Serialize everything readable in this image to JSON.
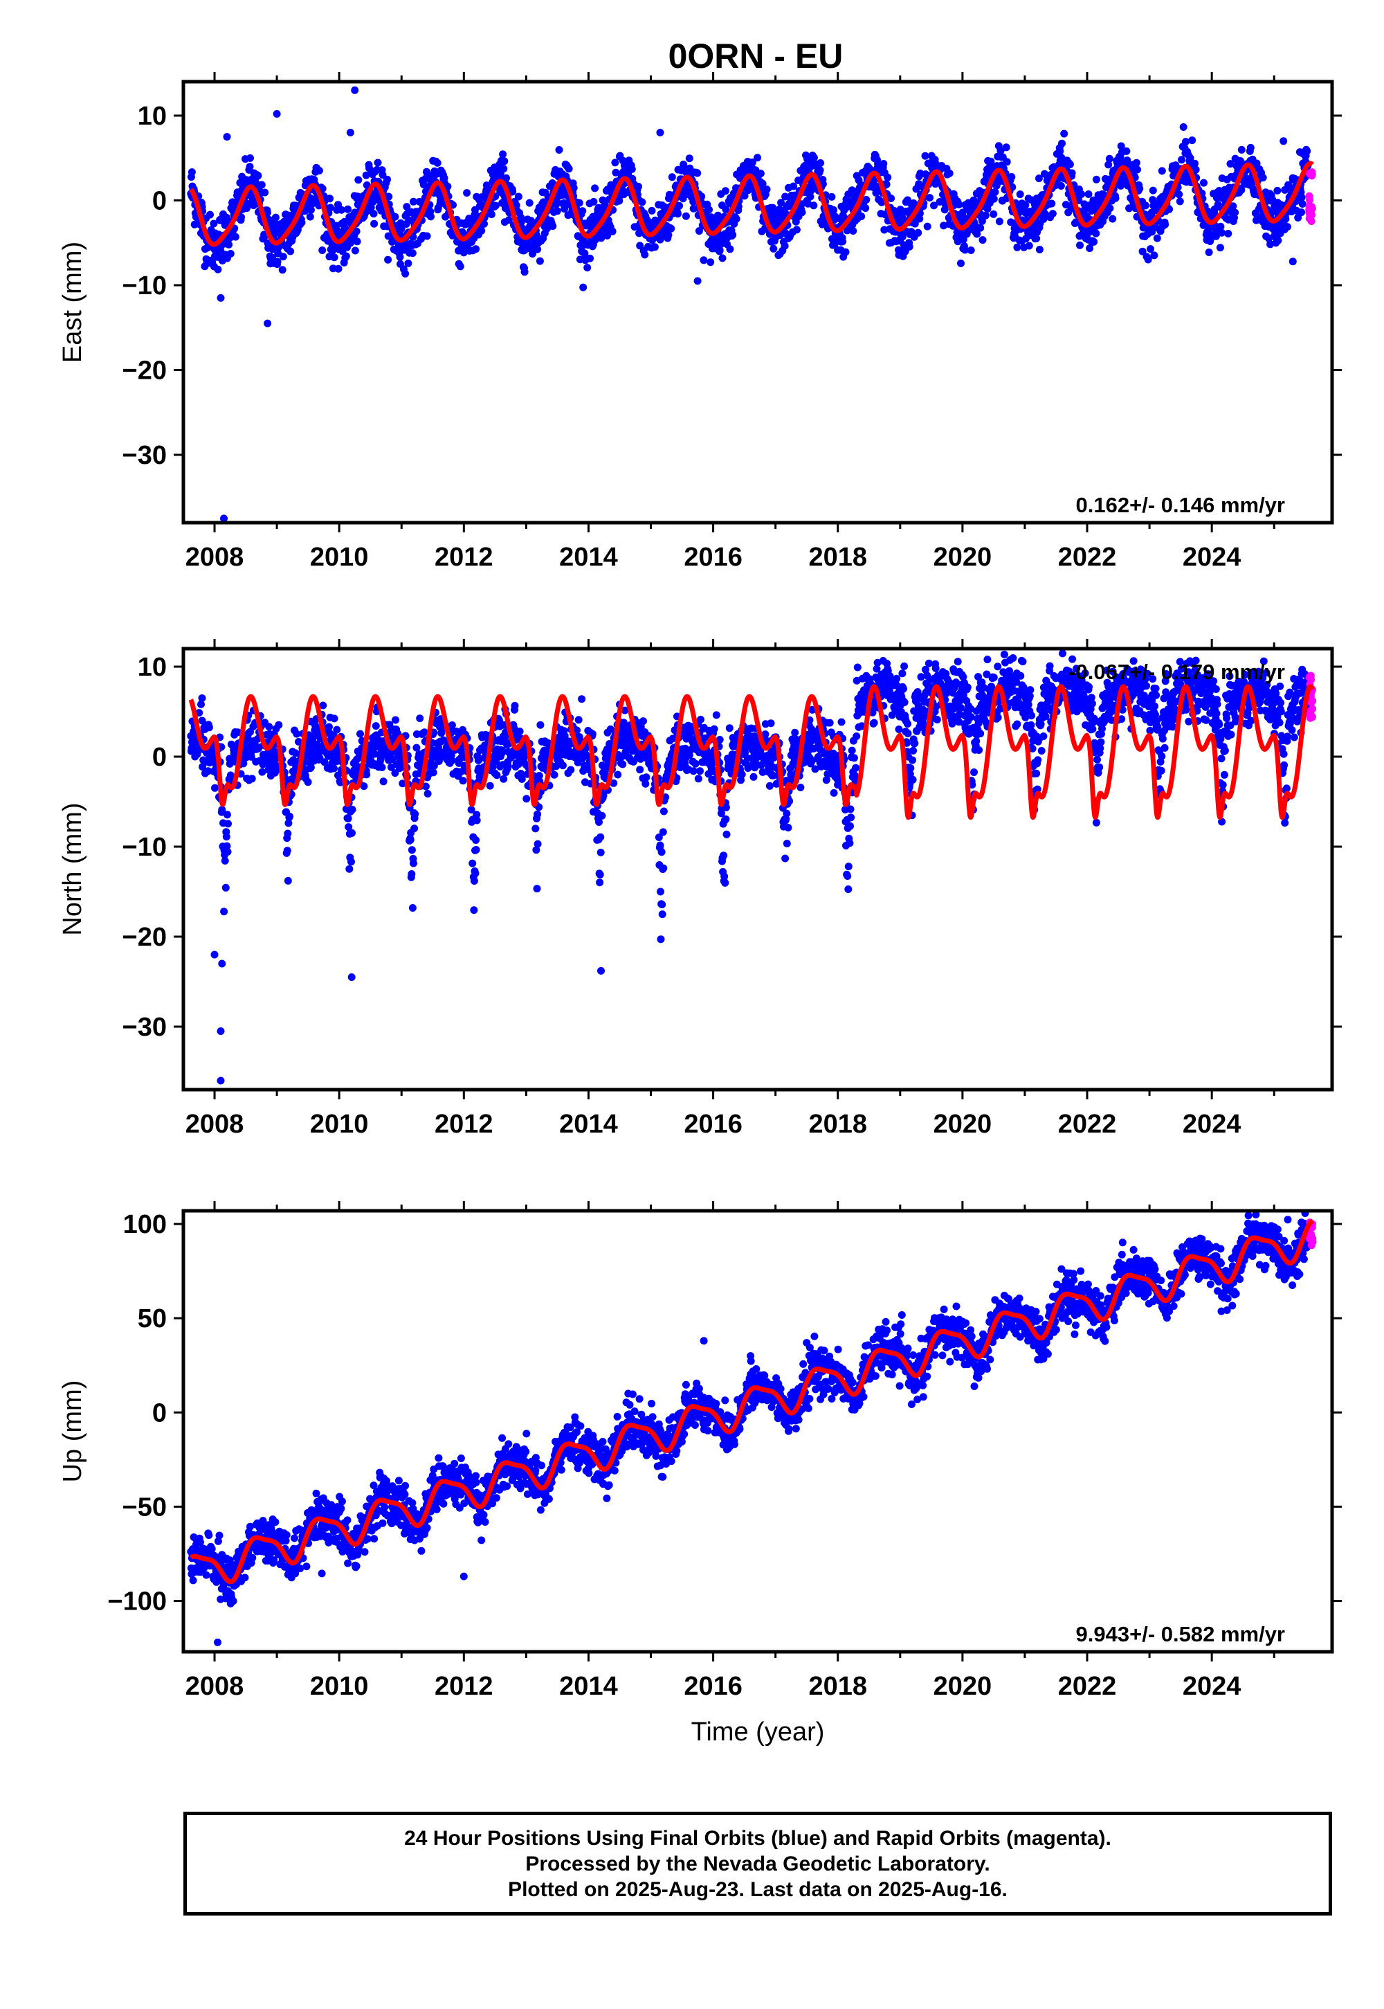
{
  "chart_data": [
    {
      "type": "scatter",
      "title": "0ORN - EU",
      "ylabel": "East (mm)",
      "xlabel": "",
      "xlim": [
        2007.5,
        2025.93
      ],
      "ylim": [
        -38,
        14
      ],
      "yticks": [
        10,
        0,
        -10,
        -20,
        -30
      ],
      "xticks": [
        2008,
        2010,
        2012,
        2014,
        2016,
        2018,
        2020,
        2022,
        2024
      ],
      "grid": false,
      "rate_label": "0.162+/- 0.146 mm/yr",
      "rate_position": "bottom-right",
      "series": [
        {
          "role": "final",
          "color": "#0000ff",
          "x_start": 2007.62,
          "x_end": 2025.55,
          "trend_start": -2.2,
          "trend_rate": 0.162,
          "annual_amplitude": 3.2,
          "annual_phase": 4.4,
          "semiannual_amplitude": 0.6,
          "noise": 1.6
        },
        {
          "role": "rapid",
          "color": "#ff00ff",
          "x_start": 2025.56,
          "x_end": 2025.62,
          "y_min": -2.5,
          "y_max": 3.5
        },
        {
          "role": "model",
          "color": "#ff0000",
          "x_start": 2007.62,
          "x_end": 2025.62
        }
      ],
      "outliers": [
        {
          "x": 2008.15,
          "y": -37.5
        },
        {
          "x": 2008.85,
          "y": -14.5
        },
        {
          "x": 2008.1,
          "y": -11.5
        },
        {
          "x": 2010.25,
          "y": 13
        },
        {
          "x": 2010.18,
          "y": 8
        },
        {
          "x": 2009.0,
          "y": 10.2
        },
        {
          "x": 2008.2,
          "y": 7.5
        },
        {
          "x": 2015.75,
          "y": -9.5
        },
        {
          "x": 2025.3,
          "y": -7.2
        },
        {
          "x": 2015.15,
          "y": 8
        },
        {
          "x": 2025.15,
          "y": 7
        }
      ]
    },
    {
      "type": "scatter",
      "title": "",
      "ylabel": "North (mm)",
      "xlabel": "",
      "xlim": [
        2007.5,
        2025.93
      ],
      "ylim": [
        -37,
        12
      ],
      "yticks": [
        10,
        0,
        -10,
        -20,
        -30
      ],
      "xticks": [
        2008,
        2010,
        2012,
        2014,
        2016,
        2018,
        2020,
        2022,
        2024
      ],
      "grid": false,
      "rate_label": "-0.067+/- 0.179 mm/yr",
      "rate_position": "top-right",
      "offset_epoch": 2018.3,
      "offset_mm": 6,
      "series": [
        {
          "role": "final",
          "color": "#0000ff",
          "x_start": 2007.62,
          "x_end": 2025.55,
          "trend_start": 0.0,
          "trend_rate": -0.067,
          "noise": 1.6,
          "seasonal_dip_min": -24,
          "seasonal_dip_epoch_fraction": 0.17
        },
        {
          "role": "rapid",
          "color": "#ff00ff",
          "x_start": 2025.56,
          "x_end": 2025.62,
          "y_min": 4,
          "y_max": 9
        },
        {
          "role": "model",
          "color": "#ff0000",
          "x_start": 2007.62,
          "x_end": 2025.62
        }
      ],
      "outliers": [
        {
          "x": 2008.1,
          "y": -36
        },
        {
          "x": 2008.1,
          "y": -30.5
        },
        {
          "x": 2008.0,
          "y": -22
        },
        {
          "x": 2008.12,
          "y": -23
        },
        {
          "x": 2010.2,
          "y": -24.5
        },
        {
          "x": 2014.2,
          "y": -23.8
        },
        {
          "x": 2007.8,
          "y": 6.5
        },
        {
          "x": 2014.5,
          "y": 5.8
        },
        {
          "x": 2020.4,
          "y": 10.8
        }
      ]
    },
    {
      "type": "scatter",
      "title": "",
      "ylabel": "Up (mm)",
      "xlabel": "Time (year)",
      "xlim": [
        2007.5,
        2025.93
      ],
      "ylim": [
        -127,
        107
      ],
      "yticks": [
        100,
        50,
        0,
        -50,
        -100
      ],
      "xticks": [
        2008,
        2010,
        2012,
        2014,
        2016,
        2018,
        2020,
        2022,
        2024
      ],
      "grid": false,
      "rate_label": "9.943+/- 0.582 mm/yr",
      "rate_position": "bottom-right",
      "series": [
        {
          "role": "final",
          "color": "#0000ff",
          "x_start": 2007.62,
          "x_end": 2025.55,
          "trend_start": -85,
          "trend_rate": 9.943,
          "annual_amplitude": 9,
          "annual_phase": 3.2,
          "noise": 6
        },
        {
          "role": "rapid",
          "color": "#ff00ff",
          "x_start": 2025.56,
          "x_end": 2025.62,
          "y_min": 88,
          "y_max": 101
        },
        {
          "role": "model",
          "color": "#ff0000",
          "x_start": 2007.62,
          "x_end": 2025.62
        }
      ],
      "outliers": [
        {
          "x": 2008.05,
          "y": -122
        },
        {
          "x": 2012.0,
          "y": -87
        },
        {
          "x": 2015.85,
          "y": 38
        },
        {
          "x": 2017.5,
          "y": 37
        },
        {
          "x": 2016.6,
          "y": 30
        }
      ]
    }
  ],
  "footer": {
    "line1": "24 Hour Positions Using Final Orbits (blue) and Rapid Orbits (magenta).",
    "line2": "Processed by the Nevada Geodetic Laboratory.",
    "line3": "Plotted on 2025-Aug-23. Last data on 2025-Aug-16."
  }
}
